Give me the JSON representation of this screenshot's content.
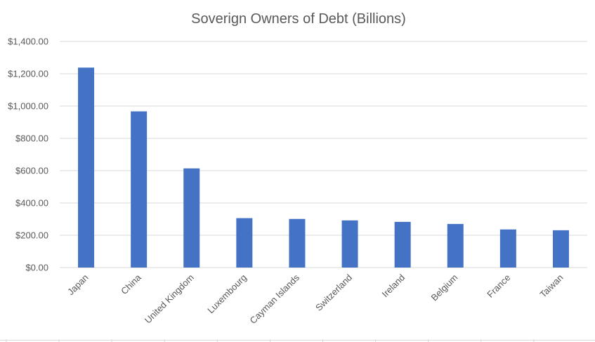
{
  "chart_data": {
    "type": "bar",
    "title": "Soverign Owners of Debt (Billions)",
    "xlabel": "",
    "ylabel": "",
    "categories": [
      "Japan",
      "China",
      "United Kingdom",
      "Luxembourg",
      "Cayman Islands",
      "Switzerland",
      "Ireland",
      "Belgium",
      "France",
      "Taiwan"
    ],
    "values": [
      1238,
      967,
      614,
      306,
      301,
      292,
      283,
      270,
      236,
      231
    ],
    "ylim": [
      0,
      1400
    ],
    "yticks": [
      "$0.00",
      "$200.00",
      "$400.00",
      "$600.00",
      "$800.00",
      "$1,000.00",
      "$1,200.00",
      "$1,400.00"
    ],
    "grid": true,
    "legend": "none",
    "bar_color": "#4472c4"
  }
}
